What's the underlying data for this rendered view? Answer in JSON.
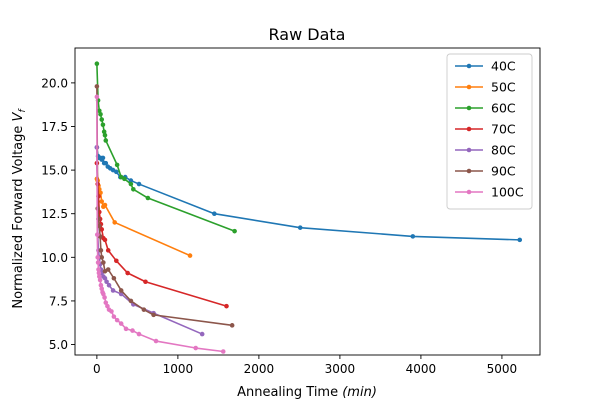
{
  "chart_data": {
    "type": "line",
    "title": "Raw Data",
    "xlabel_main": "Annealing Time ",
    "xlabel_unit": "(min)",
    "ylabel_main": "Normalized Forward Voltage ",
    "ylabel_sym": "V",
    "ylabel_sub": "f",
    "xlim": [
      -270,
      5470
    ],
    "ylim": [
      4.4,
      22.0
    ],
    "xticks": [
      0,
      1000,
      2000,
      3000,
      4000,
      5000
    ],
    "xtick_labels": [
      "0",
      "1000",
      "2000",
      "3000",
      "4000",
      "5000"
    ],
    "yticks": [
      5.0,
      7.5,
      10.0,
      12.5,
      15.0,
      17.5,
      20.0
    ],
    "ytick_labels": [
      "5.0",
      "7.5",
      "10.0",
      "12.5",
      "15.0",
      "17.5",
      "20.0"
    ],
    "grid": false,
    "legend_position": "top-right",
    "series": [
      {
        "name": "40C",
        "color": "#1f77b4",
        "x": [
          0,
          15,
          30,
          45,
          60,
          75,
          90,
          110,
          135,
          165,
          200,
          240,
          290,
          350,
          420,
          520,
          1450,
          2510,
          3900,
          5220
        ],
        "y": [
          16.3,
          15.8,
          15.7,
          15.7,
          15.6,
          15.7,
          15.4,
          15.4,
          15.2,
          15.1,
          15.0,
          14.9,
          14.6,
          14.6,
          14.4,
          14.2,
          12.5,
          11.7,
          11.2,
          11.0
        ]
      },
      {
        "name": "50C",
        "color": "#ff7f0e",
        "x": [
          0,
          10,
          20,
          30,
          45,
          60,
          80,
          100,
          220,
          1150
        ],
        "y": [
          14.5,
          14.4,
          14.1,
          13.9,
          13.7,
          13.2,
          12.9,
          13.0,
          12.0,
          10.1
        ]
      },
      {
        "name": "60C",
        "color": "#2ca02c",
        "x": [
          0,
          15,
          30,
          45,
          60,
          75,
          90,
          100,
          110,
          250,
          300,
          340,
          420,
          450,
          630,
          1700
        ],
        "y": [
          21.1,
          19.0,
          18.4,
          18.2,
          17.9,
          17.6,
          17.2,
          17.0,
          16.7,
          15.3,
          14.6,
          14.5,
          14.2,
          13.9,
          13.4,
          11.5
        ]
      },
      {
        "name": "70C",
        "color": "#d62728",
        "x": [
          0,
          10,
          20,
          30,
          40,
          50,
          60,
          80,
          100,
          140,
          240,
          380,
          600,
          1600
        ],
        "y": [
          15.4,
          14.2,
          13.5,
          12.6,
          12.2,
          11.9,
          11.6,
          11.1,
          11.0,
          10.4,
          9.8,
          9.1,
          8.6,
          7.2
        ]
      },
      {
        "name": "80C",
        "color": "#9467bd",
        "x": [
          0,
          10,
          20,
          30,
          40,
          50,
          60,
          80,
          100,
          120,
          150,
          200,
          300,
          450,
          700,
          1300
        ],
        "y": [
          16.3,
          11.3,
          10.4,
          10.0,
          9.6,
          9.3,
          9.1,
          8.9,
          8.8,
          8.6,
          8.4,
          8.1,
          7.9,
          7.3,
          6.8,
          5.6
        ]
      },
      {
        "name": "90C",
        "color": "#8c564b",
        "x": [
          0,
          10,
          20,
          30,
          40,
          50,
          60,
          80,
          100,
          140,
          210,
          300,
          420,
          580,
          700,
          1670
        ],
        "y": [
          19.8,
          12.8,
          12.2,
          11.8,
          11.2,
          10.4,
          10.0,
          9.7,
          9.2,
          9.3,
          8.8,
          8.1,
          7.5,
          7.0,
          6.7,
          6.1
        ]
      },
      {
        "name": "100C",
        "color": "#e377c2",
        "x": [
          0,
          5,
          10,
          15,
          20,
          25,
          30,
          40,
          50,
          60,
          70,
          80,
          95,
          110,
          130,
          150,
          180,
          210,
          250,
          300,
          360,
          440,
          520,
          730,
          1220,
          1560
        ],
        "y": [
          19.2,
          11.3,
          10.0,
          9.7,
          9.3,
          9.1,
          8.9,
          8.7,
          8.4,
          8.2,
          8.0,
          7.9,
          7.7,
          7.4,
          7.2,
          7.0,
          6.9,
          6.6,
          6.4,
          6.2,
          5.9,
          5.8,
          5.6,
          5.2,
          4.8,
          4.6
        ]
      }
    ]
  }
}
